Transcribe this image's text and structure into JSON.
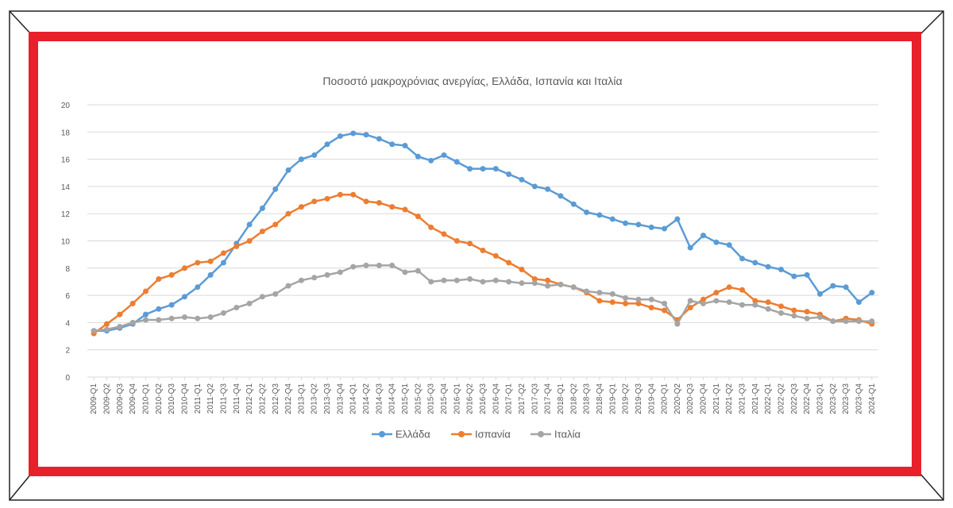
{
  "colors": {
    "border_red": "#e8202a",
    "frame_dark": "#222222",
    "greece": "#5b9bd5",
    "spain": "#ed7d31",
    "italy": "#a5a5a5",
    "grid": "#d9d9d9",
    "text": "#595959"
  },
  "chart_data": {
    "type": "line",
    "title": "Ποσοστό μακροχρόνιας ανεργίας, Ελλάδα, Ισπανία και Ιταλία",
    "xlabel": "",
    "ylabel": "",
    "ylim": [
      0,
      20
    ],
    "yticks": [
      0,
      2,
      4,
      6,
      8,
      10,
      12,
      14,
      16,
      18,
      20
    ],
    "grid": true,
    "legend_position": "bottom",
    "categories": [
      "2009-Q1",
      "2009-Q2",
      "2009-Q3",
      "2009-Q4",
      "2010-Q1",
      "2010-Q2",
      "2010-Q3",
      "2010-Q4",
      "2011-Q1",
      "2011-Q2",
      "2011-Q3",
      "2011-Q4",
      "2012-Q1",
      "2012-Q2",
      "2012-Q3",
      "2012-Q4",
      "2013-Q1",
      "2013-Q2",
      "2013-Q3",
      "2013-Q4",
      "2014-Q1",
      "2014-Q2",
      "2014-Q3",
      "2014-Q4",
      "2015-Q1",
      "2015-Q2",
      "2015-Q3",
      "2015-Q4",
      "2016-Q1",
      "2016-Q2",
      "2016-Q3",
      "2016-Q4",
      "2017-Q1",
      "2017-Q2",
      "2017-Q3",
      "2017-Q4",
      "2018-Q1",
      "2018-Q2",
      "2018-Q3",
      "2018-Q4",
      "2019-Q1",
      "2019-Q2",
      "2019-Q3",
      "2019-Q4",
      "2020-Q1",
      "2020-Q2",
      "2020-Q3",
      "2020-Q4",
      "2021-Q1",
      "2021-Q2",
      "2021-Q3",
      "2021-Q4",
      "2022-Q1",
      "2022-Q2",
      "2022-Q3",
      "2022-Q4",
      "2023-Q1",
      "2023-Q2",
      "2023-Q3",
      "2023-Q4",
      "2024-Q1"
    ],
    "series": [
      {
        "name": "Ελλάδα",
        "color": "#5b9bd5",
        "values": [
          3.4,
          3.4,
          3.6,
          3.9,
          4.6,
          5.0,
          5.3,
          5.9,
          6.6,
          7.5,
          8.4,
          9.8,
          11.2,
          12.4,
          13.8,
          15.2,
          16.0,
          16.3,
          17.1,
          17.7,
          17.9,
          17.8,
          17.5,
          17.1,
          17.0,
          16.2,
          15.9,
          16.3,
          15.8,
          15.3,
          15.3,
          15.3,
          14.9,
          14.5,
          14.0,
          13.8,
          13.3,
          12.7,
          12.1,
          11.9,
          11.6,
          11.3,
          11.2,
          11.0,
          10.9,
          11.6,
          9.5,
          10.4,
          9.9,
          9.7,
          8.7,
          8.4,
          8.1,
          7.9,
          7.4,
          7.5,
          6.1,
          6.7,
          6.6,
          5.5,
          6.2
        ]
      },
      {
        "name": "Ισπανία",
        "color": "#ed7d31",
        "values": [
          3.2,
          3.9,
          4.6,
          5.4,
          6.3,
          7.2,
          7.5,
          8.0,
          8.4,
          8.5,
          9.1,
          9.6,
          10.0,
          10.7,
          11.2,
          12.0,
          12.5,
          12.9,
          13.1,
          13.4,
          13.4,
          12.9,
          12.8,
          12.5,
          12.3,
          11.8,
          11.0,
          10.5,
          10.0,
          9.8,
          9.3,
          8.9,
          8.4,
          7.9,
          7.2,
          7.1,
          6.8,
          6.6,
          6.2,
          5.6,
          5.5,
          5.4,
          5.4,
          5.1,
          4.9,
          4.2,
          5.1,
          5.7,
          6.2,
          6.6,
          6.4,
          5.6,
          5.5,
          5.2,
          4.9,
          4.8,
          4.6,
          4.1,
          4.3,
          4.2,
          3.9
        ]
      },
      {
        "name": "Ιταλία",
        "color": "#a5a5a5",
        "values": [
          3.4,
          3.5,
          3.7,
          4.0,
          4.2,
          4.2,
          4.3,
          4.4,
          4.3,
          4.4,
          4.7,
          5.1,
          5.4,
          5.9,
          6.1,
          6.7,
          7.1,
          7.3,
          7.5,
          7.7,
          8.1,
          8.2,
          8.2,
          8.2,
          7.7,
          7.8,
          7.0,
          7.1,
          7.1,
          7.2,
          7.0,
          7.1,
          7.0,
          6.9,
          6.9,
          6.7,
          6.8,
          6.6,
          6.3,
          6.2,
          6.1,
          5.8,
          5.7,
          5.7,
          5.4,
          3.9,
          5.6,
          5.4,
          5.6,
          5.5,
          5.3,
          5.3,
          5.0,
          4.7,
          4.5,
          4.3,
          4.4,
          4.1,
          4.1,
          4.1,
          4.1
        ]
      }
    ]
  }
}
